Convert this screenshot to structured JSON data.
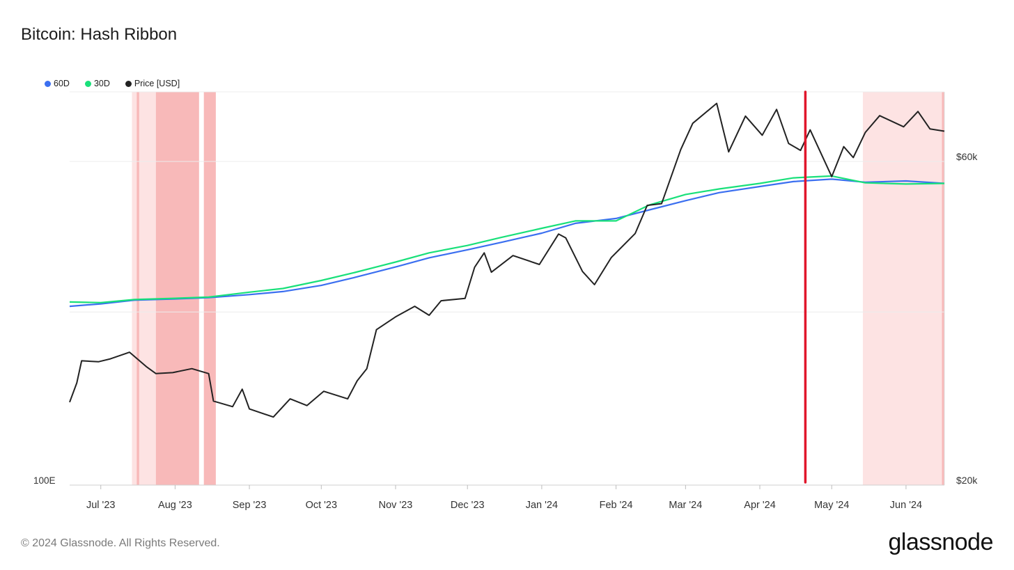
{
  "header": {
    "title": "Bitcoin: Hash Ribbon"
  },
  "footer": {
    "copyright": "© 2024 Glassnode. All Rights Reserved.",
    "brand": "glassnode"
  },
  "colors": {
    "s60": "#3b6ff0",
    "s30": "#19e07a",
    "price": "#222222",
    "marker": "#e0162b",
    "band_light": "#fde3e3",
    "band_dark": "#f8b9b9"
  },
  "chart_data": {
    "type": "line",
    "title": "Bitcoin: Hash Ribbon",
    "x_range": [
      "2023-06-18",
      "2024-06-17"
    ],
    "x_ticks": [
      {
        "label": "Jul '23",
        "date": "2023-07-01"
      },
      {
        "label": "Aug '23",
        "date": "2023-08-01"
      },
      {
        "label": "Sep '23",
        "date": "2023-09-01"
      },
      {
        "label": "Oct '23",
        "date": "2023-10-01"
      },
      {
        "label": "Nov '23",
        "date": "2023-11-01"
      },
      {
        "label": "Dec '23",
        "date": "2023-12-01"
      },
      {
        "label": "Jan '24",
        "date": "2024-01-01"
      },
      {
        "label": "Feb '24",
        "date": "2024-02-01"
      },
      {
        "label": "Mar '24",
        "date": "2024-03-01"
      },
      {
        "label": "Apr '24",
        "date": "2024-04-01"
      },
      {
        "label": "May '24",
        "date": "2024-05-01"
      },
      {
        "label": "Jun '24",
        "date": "2024-06-01"
      }
    ],
    "left_axis": {
      "tick_labels": [
        "100E"
      ]
    },
    "right_axis": {
      "scale": "log",
      "range": [
        20000,
        76000
      ],
      "tick_labels": [
        {
          "label": "$20k",
          "value": 20000
        },
        {
          "label": "$60k",
          "value": 60000
        }
      ]
    },
    "legend_position": "top-left",
    "series": [
      {
        "name": "60D",
        "color": "#3b6ff0",
        "points": [
          [
            "2023-06-18",
            391
          ],
          [
            "2023-07-01",
            395
          ],
          [
            "2023-07-15",
            401
          ],
          [
            "2023-08-01",
            403
          ],
          [
            "2023-08-15",
            405
          ],
          [
            "2023-09-01",
            410
          ],
          [
            "2023-09-15",
            415
          ],
          [
            "2023-10-01",
            425
          ],
          [
            "2023-10-15",
            438
          ],
          [
            "2023-11-01",
            455
          ],
          [
            "2023-11-15",
            470
          ],
          [
            "2023-12-01",
            483
          ],
          [
            "2023-12-15",
            495
          ],
          [
            "2024-01-01",
            510
          ],
          [
            "2024-01-15",
            526
          ],
          [
            "2024-02-01",
            534
          ],
          [
            "2024-02-15",
            548
          ],
          [
            "2024-03-01",
            563
          ],
          [
            "2024-03-15",
            576
          ],
          [
            "2024-04-01",
            586
          ],
          [
            "2024-04-15",
            594
          ],
          [
            "2024-05-01",
            598
          ],
          [
            "2024-05-15",
            593
          ],
          [
            "2024-06-01",
            595
          ],
          [
            "2024-06-17",
            591
          ]
        ]
      },
      {
        "name": "30D",
        "color": "#19e07a",
        "points": [
          [
            "2023-06-18",
            398
          ],
          [
            "2023-07-01",
            397
          ],
          [
            "2023-07-15",
            402
          ],
          [
            "2023-08-01",
            404
          ],
          [
            "2023-08-15",
            406
          ],
          [
            "2023-09-01",
            414
          ],
          [
            "2023-09-15",
            420
          ],
          [
            "2023-10-01",
            433
          ],
          [
            "2023-10-15",
            446
          ],
          [
            "2023-11-01",
            463
          ],
          [
            "2023-11-15",
            478
          ],
          [
            "2023-12-01",
            490
          ],
          [
            "2023-12-15",
            503
          ],
          [
            "2024-01-01",
            518
          ],
          [
            "2024-01-15",
            530
          ],
          [
            "2024-02-01",
            530
          ],
          [
            "2024-02-15",
            556
          ],
          [
            "2024-03-01",
            573
          ],
          [
            "2024-03-15",
            582
          ],
          [
            "2024-04-01",
            591
          ],
          [
            "2024-04-15",
            600
          ],
          [
            "2024-05-01",
            603
          ],
          [
            "2024-05-15",
            592
          ],
          [
            "2024-06-01",
            590
          ],
          [
            "2024-06-17",
            591
          ]
        ]
      },
      {
        "name": "Price [USD]",
        "color": "#222222",
        "axis": "right",
        "points": [
          [
            "2023-06-18",
            26500
          ],
          [
            "2023-06-21",
            28300
          ],
          [
            "2023-06-23",
            30500
          ],
          [
            "2023-06-30",
            30400
          ],
          [
            "2023-07-05",
            30700
          ],
          [
            "2023-07-13",
            31400
          ],
          [
            "2023-07-20",
            29900
          ],
          [
            "2023-07-24",
            29200
          ],
          [
            "2023-07-31",
            29300
          ],
          [
            "2023-08-08",
            29700
          ],
          [
            "2023-08-15",
            29200
          ],
          [
            "2023-08-17",
            26600
          ],
          [
            "2023-08-25",
            26100
          ],
          [
            "2023-08-29",
            27700
          ],
          [
            "2023-09-01",
            25900
          ],
          [
            "2023-09-11",
            25200
          ],
          [
            "2023-09-18",
            26800
          ],
          [
            "2023-09-25",
            26200
          ],
          [
            "2023-10-02",
            27500
          ],
          [
            "2023-10-12",
            26800
          ],
          [
            "2023-10-16",
            28500
          ],
          [
            "2023-10-20",
            29700
          ],
          [
            "2023-10-24",
            33900
          ],
          [
            "2023-11-01",
            35400
          ],
          [
            "2023-11-09",
            36700
          ],
          [
            "2023-11-15",
            35600
          ],
          [
            "2023-11-20",
            37400
          ],
          [
            "2023-11-30",
            37700
          ],
          [
            "2023-12-04",
            41900
          ],
          [
            "2023-12-08",
            44000
          ],
          [
            "2023-12-11",
            41200
          ],
          [
            "2023-12-20",
            43600
          ],
          [
            "2023-12-31",
            42300
          ],
          [
            "2024-01-08",
            46900
          ],
          [
            "2024-01-11",
            46300
          ],
          [
            "2024-01-18",
            41300
          ],
          [
            "2024-01-23",
            39500
          ],
          [
            "2024-01-30",
            43300
          ],
          [
            "2024-02-09",
            47000
          ],
          [
            "2024-02-14",
            51700
          ],
          [
            "2024-02-20",
            52000
          ],
          [
            "2024-02-28",
            62500
          ],
          [
            "2024-03-04",
            68300
          ],
          [
            "2024-03-14",
            73100
          ],
          [
            "2024-03-19",
            62000
          ],
          [
            "2024-03-26",
            70000
          ],
          [
            "2024-04-02",
            65600
          ],
          [
            "2024-04-08",
            71600
          ],
          [
            "2024-04-13",
            63800
          ],
          [
            "2024-04-18",
            62300
          ],
          [
            "2024-04-22",
            66800
          ],
          [
            "2024-05-01",
            57000
          ],
          [
            "2024-05-06",
            63100
          ],
          [
            "2024-05-10",
            60800
          ],
          [
            "2024-05-15",
            66200
          ],
          [
            "2024-05-21",
            70100
          ],
          [
            "2024-05-31",
            67500
          ],
          [
            "2024-06-06",
            71100
          ],
          [
            "2024-06-11",
            67000
          ],
          [
            "2024-06-17",
            66500
          ]
        ]
      }
    ],
    "shaded_periods": [
      {
        "start": "2023-07-14",
        "end": "2023-07-30",
        "style": "light"
      },
      {
        "start": "2023-07-16",
        "end": "2023-07-17",
        "style": "dark"
      },
      {
        "start": "2023-07-24",
        "end": "2023-08-11",
        "style": "dark"
      },
      {
        "start": "2023-08-13",
        "end": "2023-08-18",
        "style": "dark"
      },
      {
        "start": "2024-05-14",
        "end": "2024-06-17",
        "style": "light"
      },
      {
        "start": "2024-06-16",
        "end": "2024-06-17",
        "style": "dark"
      }
    ],
    "marker_line": {
      "date": "2024-04-20"
    }
  }
}
